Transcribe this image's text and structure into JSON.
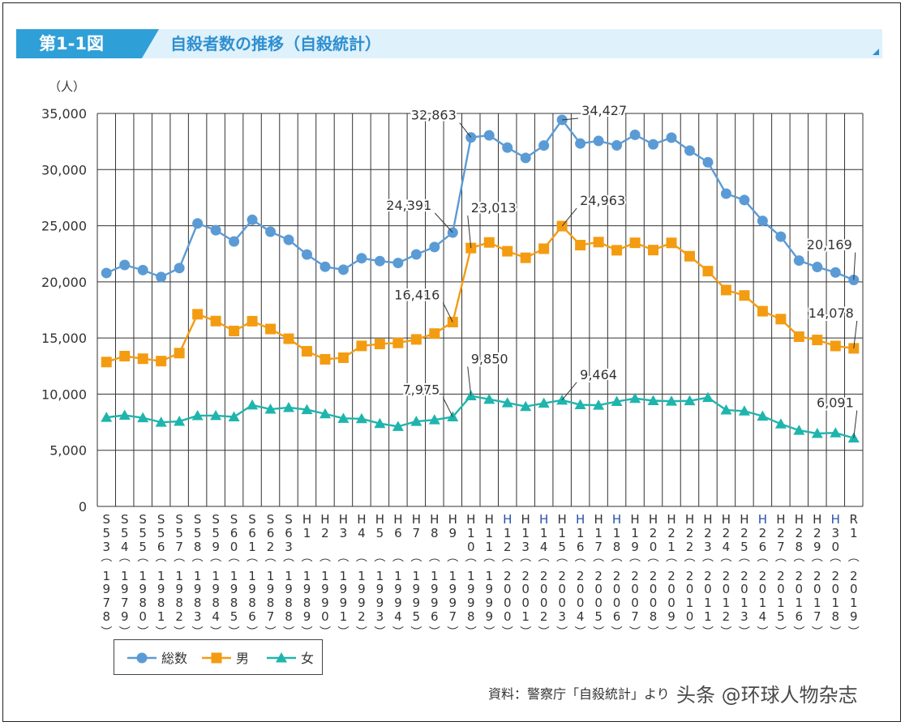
{
  "header": {
    "figure_label": "第1-1図",
    "title": "自殺者数の推移（自殺統計）"
  },
  "chart_data": {
    "type": "line",
    "ylabel": "（人）",
    "ylim": [
      0,
      35000
    ],
    "yticks": [
      0,
      5000,
      10000,
      15000,
      20000,
      25000,
      30000,
      35000
    ],
    "ytick_labels": [
      "0",
      "5,000",
      "10,000",
      "15,000",
      "20,000",
      "25,000",
      "30,000",
      "35,000"
    ],
    "grid": true,
    "categories": [
      {
        "era": "S53",
        "year": "1978"
      },
      {
        "era": "S54",
        "year": "1979"
      },
      {
        "era": "S55",
        "year": "1980"
      },
      {
        "era": "S56",
        "year": "1981"
      },
      {
        "era": "S57",
        "year": "1982"
      },
      {
        "era": "S58",
        "year": "1983"
      },
      {
        "era": "S59",
        "year": "1984"
      },
      {
        "era": "S60",
        "year": "1985"
      },
      {
        "era": "S61",
        "year": "1986"
      },
      {
        "era": "S62",
        "year": "1987"
      },
      {
        "era": "S63",
        "year": "1988"
      },
      {
        "era": "H1",
        "year": "1989"
      },
      {
        "era": "H2",
        "year": "1990"
      },
      {
        "era": "H3",
        "year": "1991"
      },
      {
        "era": "H4",
        "year": "1992"
      },
      {
        "era": "H5",
        "year": "1993"
      },
      {
        "era": "H6",
        "year": "1994"
      },
      {
        "era": "H7",
        "year": "1995"
      },
      {
        "era": "H8",
        "year": "1996"
      },
      {
        "era": "H9",
        "year": "1997"
      },
      {
        "era": "H10",
        "year": "1998"
      },
      {
        "era": "H11",
        "year": "1999"
      },
      {
        "era": "H12",
        "year": "2000"
      },
      {
        "era": "H13",
        "year": "2001"
      },
      {
        "era": "H14",
        "year": "2002"
      },
      {
        "era": "H15",
        "year": "2003"
      },
      {
        "era": "H16",
        "year": "2004"
      },
      {
        "era": "H17",
        "year": "2005"
      },
      {
        "era": "H18",
        "year": "2006"
      },
      {
        "era": "H19",
        "year": "2007"
      },
      {
        "era": "H20",
        "year": "2008"
      },
      {
        "era": "H21",
        "year": "2009"
      },
      {
        "era": "H22",
        "year": "2010"
      },
      {
        "era": "H23",
        "year": "2011"
      },
      {
        "era": "H24",
        "year": "2012"
      },
      {
        "era": "H25",
        "year": "2013"
      },
      {
        "era": "H26",
        "year": "2014"
      },
      {
        "era": "H27",
        "year": "2015"
      },
      {
        "era": "H28",
        "year": "2016"
      },
      {
        "era": "H29",
        "year": "2017"
      },
      {
        "era": "H30",
        "year": "2018"
      },
      {
        "era": "R1",
        "year": "2019"
      }
    ],
    "series": [
      {
        "name": "総数",
        "color": "#5b9bd5",
        "marker": "circle",
        "values": [
          20788,
          21503,
          21048,
          20434,
          21228,
          25202,
          24596,
          23599,
          25524,
          24460,
          23742,
          22436,
          21346,
          21084,
          22104,
          21851,
          21679,
          22445,
          23104,
          24391,
          32863,
          33048,
          31957,
          31042,
          32143,
          34427,
          32325,
          32552,
          32155,
          33093,
          32249,
          32845,
          31690,
          30651,
          27858,
          27283,
          25427,
          24025,
          21897,
          21321,
          20840,
          20169
        ]
      },
      {
        "name": "男",
        "color": "#f39c12",
        "marker": "square",
        "values": [
          12859,
          13386,
          13155,
          12942,
          13654,
          17116,
          16508,
          15624,
          16497,
          15802,
          14934,
          13818,
          13102,
          13242,
          14296,
          14468,
          14560,
          14874,
          15393,
          16416,
          23013,
          23512,
          22727,
          22144,
          22952,
          24963,
          23272,
          23540,
          22813,
          23478,
          22831,
          23472,
          22283,
          20955,
          19273,
          18787,
          17386,
          16681,
          15121,
          14826,
          14290,
          14078
        ]
      },
      {
        "name": "女",
        "color": "#1fb5ad",
        "marker": "triangle",
        "values": [
          7929,
          8117,
          7893,
          7492,
          7574,
          8086,
          8088,
          7975,
          9027,
          8658,
          8808,
          8618,
          8244,
          7842,
          7808,
          7383,
          7119,
          7571,
          7711,
          7975,
          9850,
          9536,
          9230,
          8898,
          9191,
          9464,
          9053,
          9012,
          9342,
          9615,
          9418,
          9373,
          9407,
          9696,
          8585,
          8496,
          8041,
          7344,
          6776,
          6495,
          6550,
          6091
        ]
      }
    ],
    "annotations": [
      {
        "series": 0,
        "index": 19,
        "text": "24,391"
      },
      {
        "series": 0,
        "index": 20,
        "text": "32,863"
      },
      {
        "series": 0,
        "index": 25,
        "text": "34,427"
      },
      {
        "series": 0,
        "index": 41,
        "text": "20,169"
      },
      {
        "series": 1,
        "index": 19,
        "text": "16,416"
      },
      {
        "series": 1,
        "index": 20,
        "text": "23,013"
      },
      {
        "series": 1,
        "index": 25,
        "text": "24,963"
      },
      {
        "series": 1,
        "index": 41,
        "text": "14,078"
      },
      {
        "series": 2,
        "index": 19,
        "text": "7,975"
      },
      {
        "series": 2,
        "index": 20,
        "text": "9,850"
      },
      {
        "series": 2,
        "index": 25,
        "text": "9,464"
      },
      {
        "series": 2,
        "index": 41,
        "text": "6,091"
      }
    ],
    "legend": {
      "position": "bottom-left",
      "labels": [
        "総数",
        "男",
        "女"
      ]
    }
  },
  "footer": {
    "source": "資料：警察庁「自殺統計」より",
    "watermark": "头条 @环球人物杂志"
  }
}
